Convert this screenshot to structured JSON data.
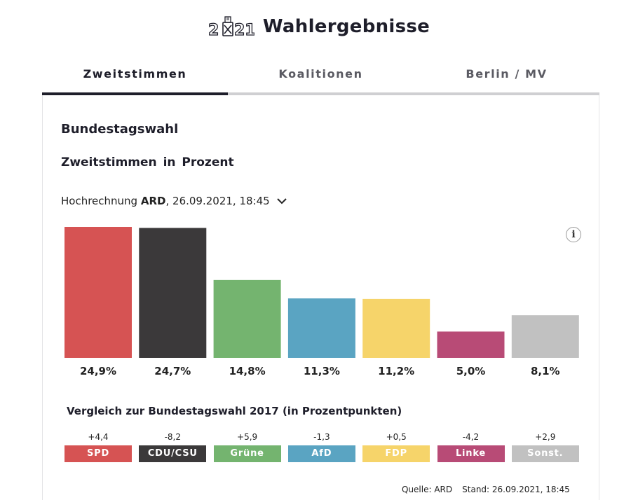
{
  "header": {
    "logo_text": "2021",
    "title": "Wahlergebnisse"
  },
  "tabs": [
    {
      "label": "Zweitstimmen",
      "active": true
    },
    {
      "label": "Koalitionen",
      "active": false
    },
    {
      "label": "Berlin / MV",
      "active": false
    }
  ],
  "card": {
    "title": "Bundestagswahl",
    "subtitle": "Zweitstimmen in Prozent",
    "forecast_prefix": "Hochrechnung",
    "forecast_source": "ARD",
    "forecast_date": ", 26.09.2021, 18:45",
    "info_icon": "i",
    "comparison_title": "Vergleich zur Bundestagswahl 2017 (in Prozentpunkten)",
    "footer_source": "Quelle: ARD",
    "footer_timestamp": "Stand: 26.09.2021, 18:45"
  },
  "chart_data": {
    "type": "bar",
    "categories": [
      "SPD",
      "CDU/CSU",
      "Grüne",
      "AfD",
      "FDP",
      "Linke",
      "Sonst."
    ],
    "values": [
      24.9,
      24.7,
      14.8,
      11.3,
      11.2,
      5.0,
      8.1
    ],
    "value_labels": [
      "24,9%",
      "24,7%",
      "14,8%",
      "11,3%",
      "11,2%",
      "5,0%",
      "8,1%"
    ],
    "colors": [
      "#d65353",
      "#3b393a",
      "#74b46f",
      "#5aa4c2",
      "#f6d46a",
      "#b84b76",
      "#c1c1c1"
    ],
    "ylim": [
      0,
      24.9
    ],
    "comparison": {
      "values": [
        4.4,
        -8.2,
        5.9,
        -1.3,
        0.5,
        -4.2,
        2.9
      ],
      "labels": [
        "+4,4",
        "-8,2",
        "+5,9",
        "-1,3",
        "+0,5",
        "-4,2",
        "+2,9"
      ]
    }
  }
}
